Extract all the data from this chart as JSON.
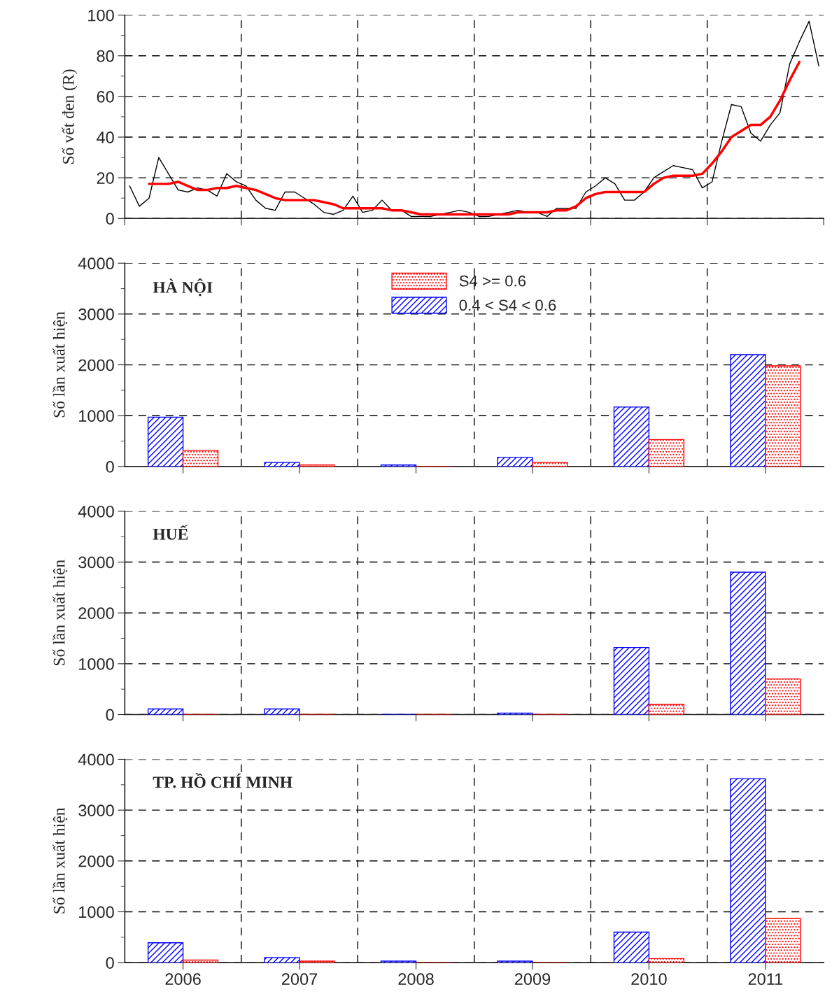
{
  "chart_data": [
    {
      "type": "line",
      "ylabel": "Số vết đen (R)",
      "categories": [
        null,
        null,
        null,
        null,
        null,
        null,
        null,
        null,
        null,
        null,
        null,
        null,
        null,
        null,
        null,
        null,
        null,
        null,
        null,
        null,
        null,
        null,
        null,
        null,
        null,
        null,
        null,
        null,
        null,
        null,
        null,
        null,
        null,
        null,
        null,
        null,
        null,
        null,
        null,
        null,
        null,
        null,
        null,
        null,
        null,
        null,
        null,
        null,
        null,
        null,
        null,
        null,
        null,
        null,
        null,
        null,
        null,
        null,
        null,
        null,
        null,
        null,
        null,
        null,
        null,
        null,
        null,
        null,
        null,
        null,
        null,
        null
      ],
      "ylim": [
        0,
        100
      ],
      "yticks": [
        0,
        20,
        40,
        60,
        80,
        100
      ],
      "grid": true,
      "series": [
        {
          "color": "#000000",
          "values": [
            16,
            6,
            10,
            30,
            22,
            14,
            13,
            15,
            14,
            11,
            22,
            18,
            16,
            9,
            5,
            4,
            13,
            13,
            10,
            7,
            3,
            2,
            4,
            11,
            3,
            4,
            9,
            4,
            4,
            1,
            1,
            1,
            2,
            3,
            4,
            3,
            1,
            1,
            2,
            3,
            4,
            3,
            3,
            1,
            5,
            5,
            5,
            13,
            16,
            20,
            17,
            9,
            9,
            13,
            20,
            23,
            26,
            25,
            24,
            15,
            18,
            38,
            56,
            55,
            42,
            38,
            46,
            52,
            76,
            87,
            97,
            75
          ]
        },
        {
          "color": "#ff0000",
          "values": [
            null,
            null,
            17,
            17,
            17,
            18,
            16,
            14,
            14,
            15,
            15,
            16,
            15,
            14,
            12,
            10,
            9,
            9,
            9,
            9,
            8,
            7,
            5,
            5,
            5,
            5,
            5,
            4,
            4,
            3,
            2,
            2,
            2,
            2,
            2,
            2,
            2,
            2,
            2,
            2,
            3,
            3,
            3,
            3,
            4,
            4,
            6,
            10,
            12,
            13,
            13,
            13,
            13,
            13,
            17,
            20,
            21,
            21,
            21,
            22,
            27,
            33,
            40,
            43,
            46,
            46,
            50,
            58,
            68,
            77,
            null,
            null
          ]
        }
      ]
    },
    {
      "type": "bar",
      "ylabel": "Số lần xuất hiện",
      "annotations": [
        "HÀ NỘI"
      ],
      "categories": [
        "2006",
        "2007",
        "2008",
        "2009",
        "2010",
        "2011"
      ],
      "ylim": [
        0,
        4000
      ],
      "yticks": [
        0,
        1000,
        2000,
        3000,
        4000
      ],
      "grid": true,
      "tick_labels": "y",
      "legend": "top",
      "series": [
        {
          "name": "0.4 < S4 < 0.6",
          "color": "#0000ff",
          "values": [
            970,
            80,
            30,
            180,
            1170,
            2200
          ]
        },
        {
          "name": "S4 >= 0.6",
          "color": "#ff0000",
          "values": [
            320,
            30,
            0,
            80,
            530,
            1980
          ]
        }
      ]
    },
    {
      "type": "bar",
      "ylabel": "Số lần xuất hiện",
      "annotations": [
        "HUẾ"
      ],
      "categories": [
        "2006",
        "2007",
        "2008",
        "2009",
        "2010",
        "2011"
      ],
      "ylim": [
        0,
        4000
      ],
      "yticks": [
        0,
        1000,
        2000,
        3000,
        4000
      ],
      "grid": true,
      "tick_labels": "y",
      "series": [
        {
          "color": "#0000ff",
          "values": [
            110,
            110,
            0,
            30,
            1320,
            2800
          ]
        },
        {
          "color": "#ff0000",
          "values": [
            0,
            0,
            0,
            0,
            200,
            700
          ]
        }
      ]
    },
    {
      "type": "bar",
      "ylabel": "Số lần xuất hiện",
      "annotations": [
        "TP. HỒ CHÍ MINH"
      ],
      "categories": [
        "2006",
        "2007",
        "2008",
        "2009",
        "2010",
        "2011"
      ],
      "ylim": [
        0,
        4000
      ],
      "yticks": [
        0,
        1000,
        2000,
        3000,
        4000
      ],
      "grid": true,
      "series": [
        {
          "color": "#0000ff",
          "values": [
            390,
            100,
            30,
            30,
            600,
            3620
          ]
        },
        {
          "color": "#ff0000",
          "values": [
            50,
            30,
            0,
            0,
            80,
            870
          ]
        }
      ]
    }
  ]
}
